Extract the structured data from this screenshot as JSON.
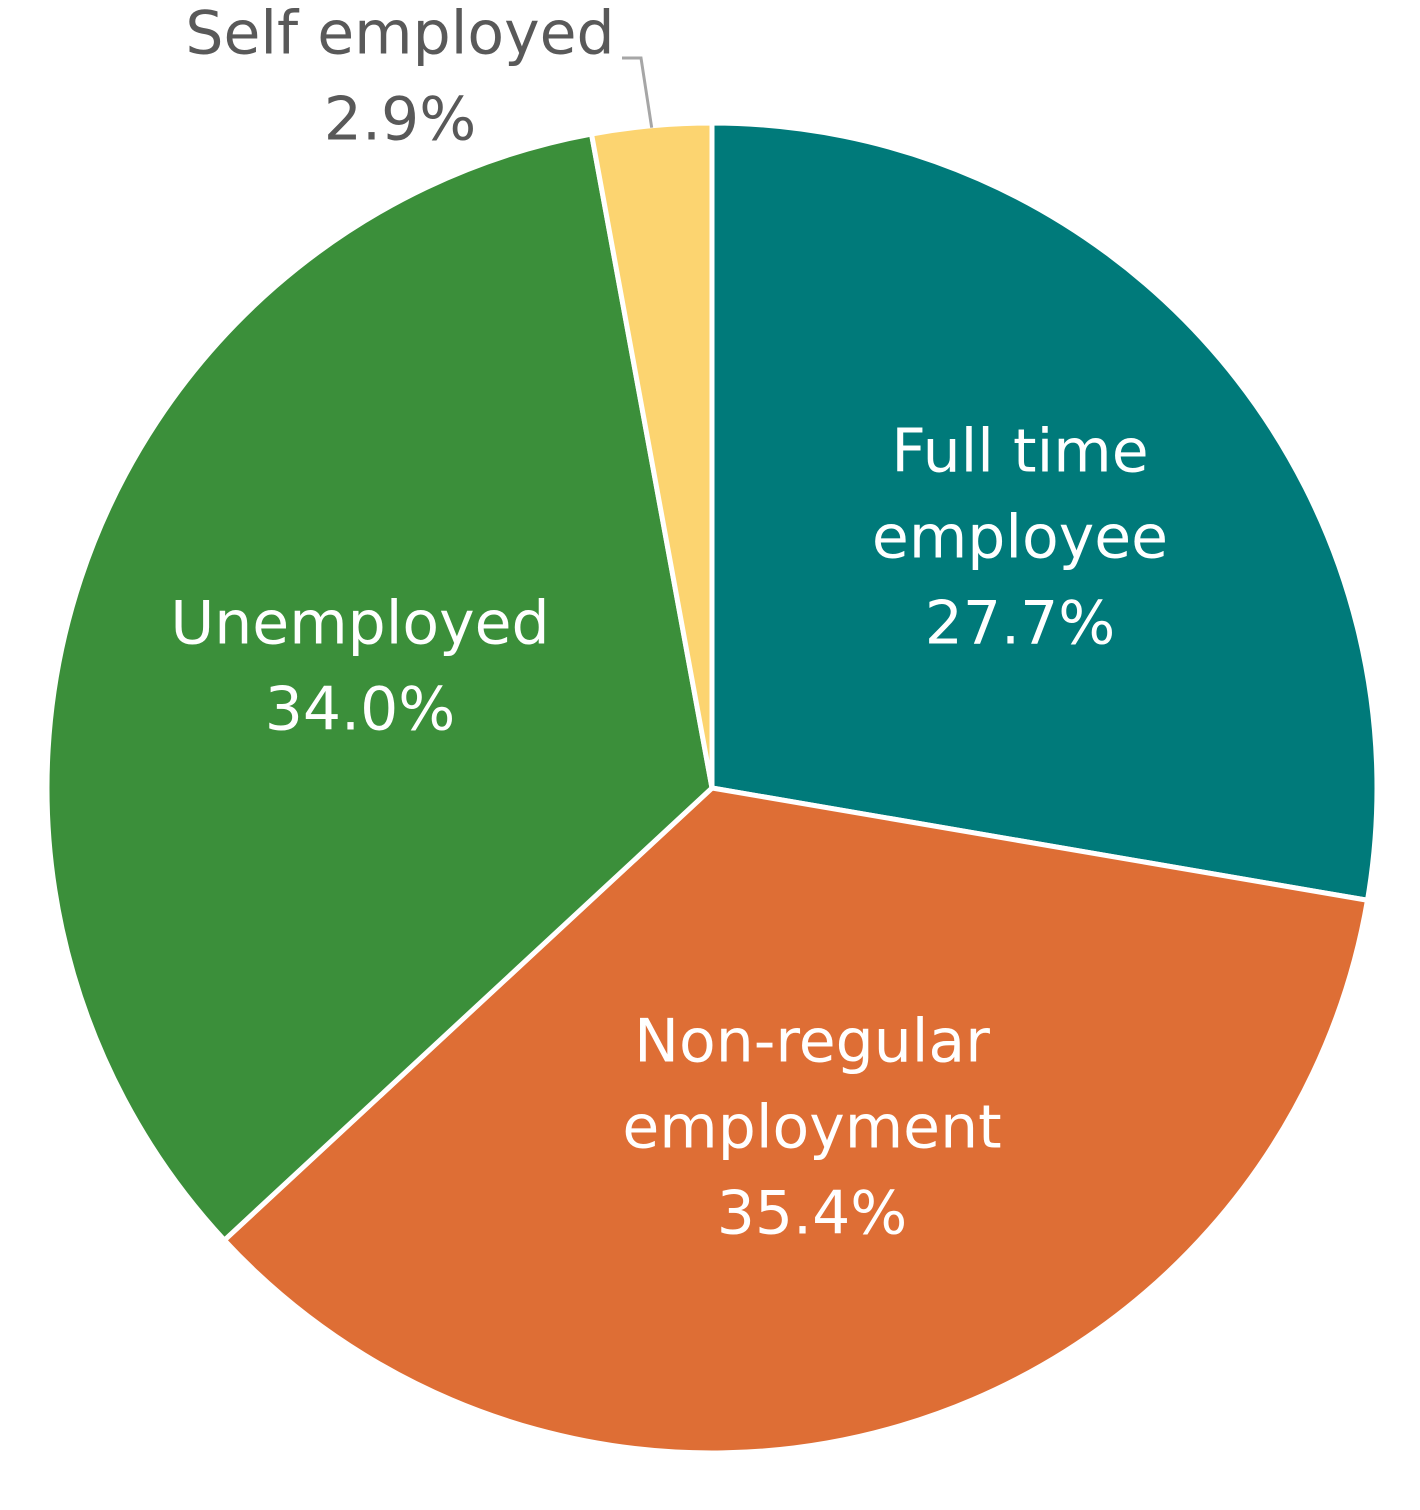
{
  "chart_data": {
    "type": "pie",
    "title": "",
    "start_angle_deg": 0,
    "direction": "clockwise",
    "slices": [
      {
        "name_lines": [
          "Full time",
          "employee"
        ],
        "value": 27.7,
        "value_label": "27.7%",
        "color": "#007A7A",
        "label_position": "inside"
      },
      {
        "name_lines": [
          "Non-regular",
          "employment"
        ],
        "value": 35.4,
        "value_label": "35.4%",
        "color": "#DE6E35",
        "label_position": "inside"
      },
      {
        "name_lines": [
          "Unemployed"
        ],
        "value": 34.0,
        "value_label": "34.0%",
        "color": "#3B8F3A",
        "label_position": "inside"
      },
      {
        "name_lines": [
          "Self employed"
        ],
        "value": 2.9,
        "value_label": "2.9%",
        "color": "#FCD470",
        "label_position": "outside"
      }
    ]
  }
}
